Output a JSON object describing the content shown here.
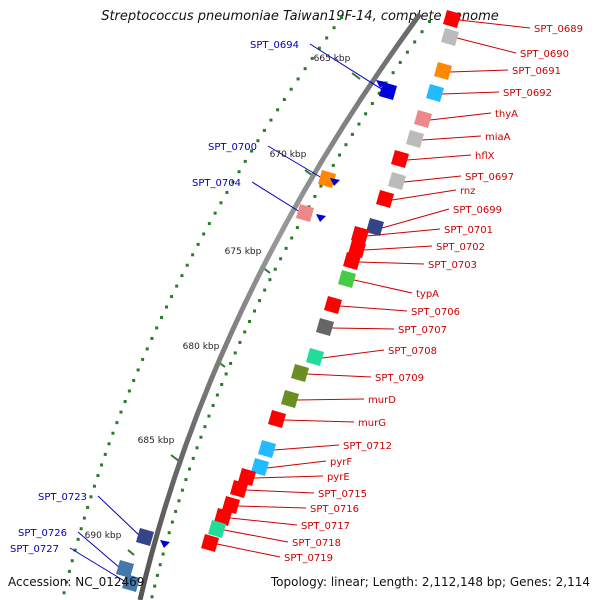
{
  "title": "Streptococcus pneumoniae Taiwan19F-14, complete genome",
  "footer": {
    "accession": "Accession: NC_012469",
    "topology": "Topology: linear; Length: 2,112,148 bp; Genes: 2,114"
  },
  "colors": {
    "red_label": "#cc0000",
    "blue_label": "#0000bb",
    "backbone": "#777777",
    "tick": "#2a7a2a",
    "gene_red": "#ff0000",
    "gene_blue": "#0000dd",
    "gene_orange": "#ff8800",
    "gene_cyan": "#22bbff",
    "gene_grey": "#bbbbbb",
    "gene_dark_grey": "#666666",
    "gene_green": "#44cc44",
    "gene_olive": "#6b8e23",
    "gene_pink": "#ee8888",
    "gene_teal": "#22dd99",
    "gene_navy": "#334488",
    "gene_steel": "#4477aa"
  },
  "kbp_labels": [
    "665 kbp",
    "670 kbp",
    "675 kbp",
    "680 kbp",
    "685 kbp",
    "690 kbp"
  ],
  "right_labels": [
    "SPT_0689",
    "SPT_0690",
    "SPT_0691",
    "SPT_0692",
    "thyA",
    "miaA",
    "hflX",
    "SPT_0697",
    "rnz",
    "SPT_0699",
    "SPT_0701",
    "SPT_0702",
    "SPT_0703",
    "typA",
    "SPT_0706",
    "SPT_0707",
    "SPT_0708",
    "SPT_0709",
    "murD",
    "murG",
    "SPT_0712",
    "pyrF",
    "pyrE",
    "SPT_0715",
    "SPT_0716",
    "SPT_0717",
    "SPT_0718",
    "SPT_0719"
  ],
  "left_labels": [
    "SPT_0694",
    "SPT_0700",
    "SPT_0704",
    "SPT_0723",
    "SPT_0726",
    "SPT_0727"
  ]
}
